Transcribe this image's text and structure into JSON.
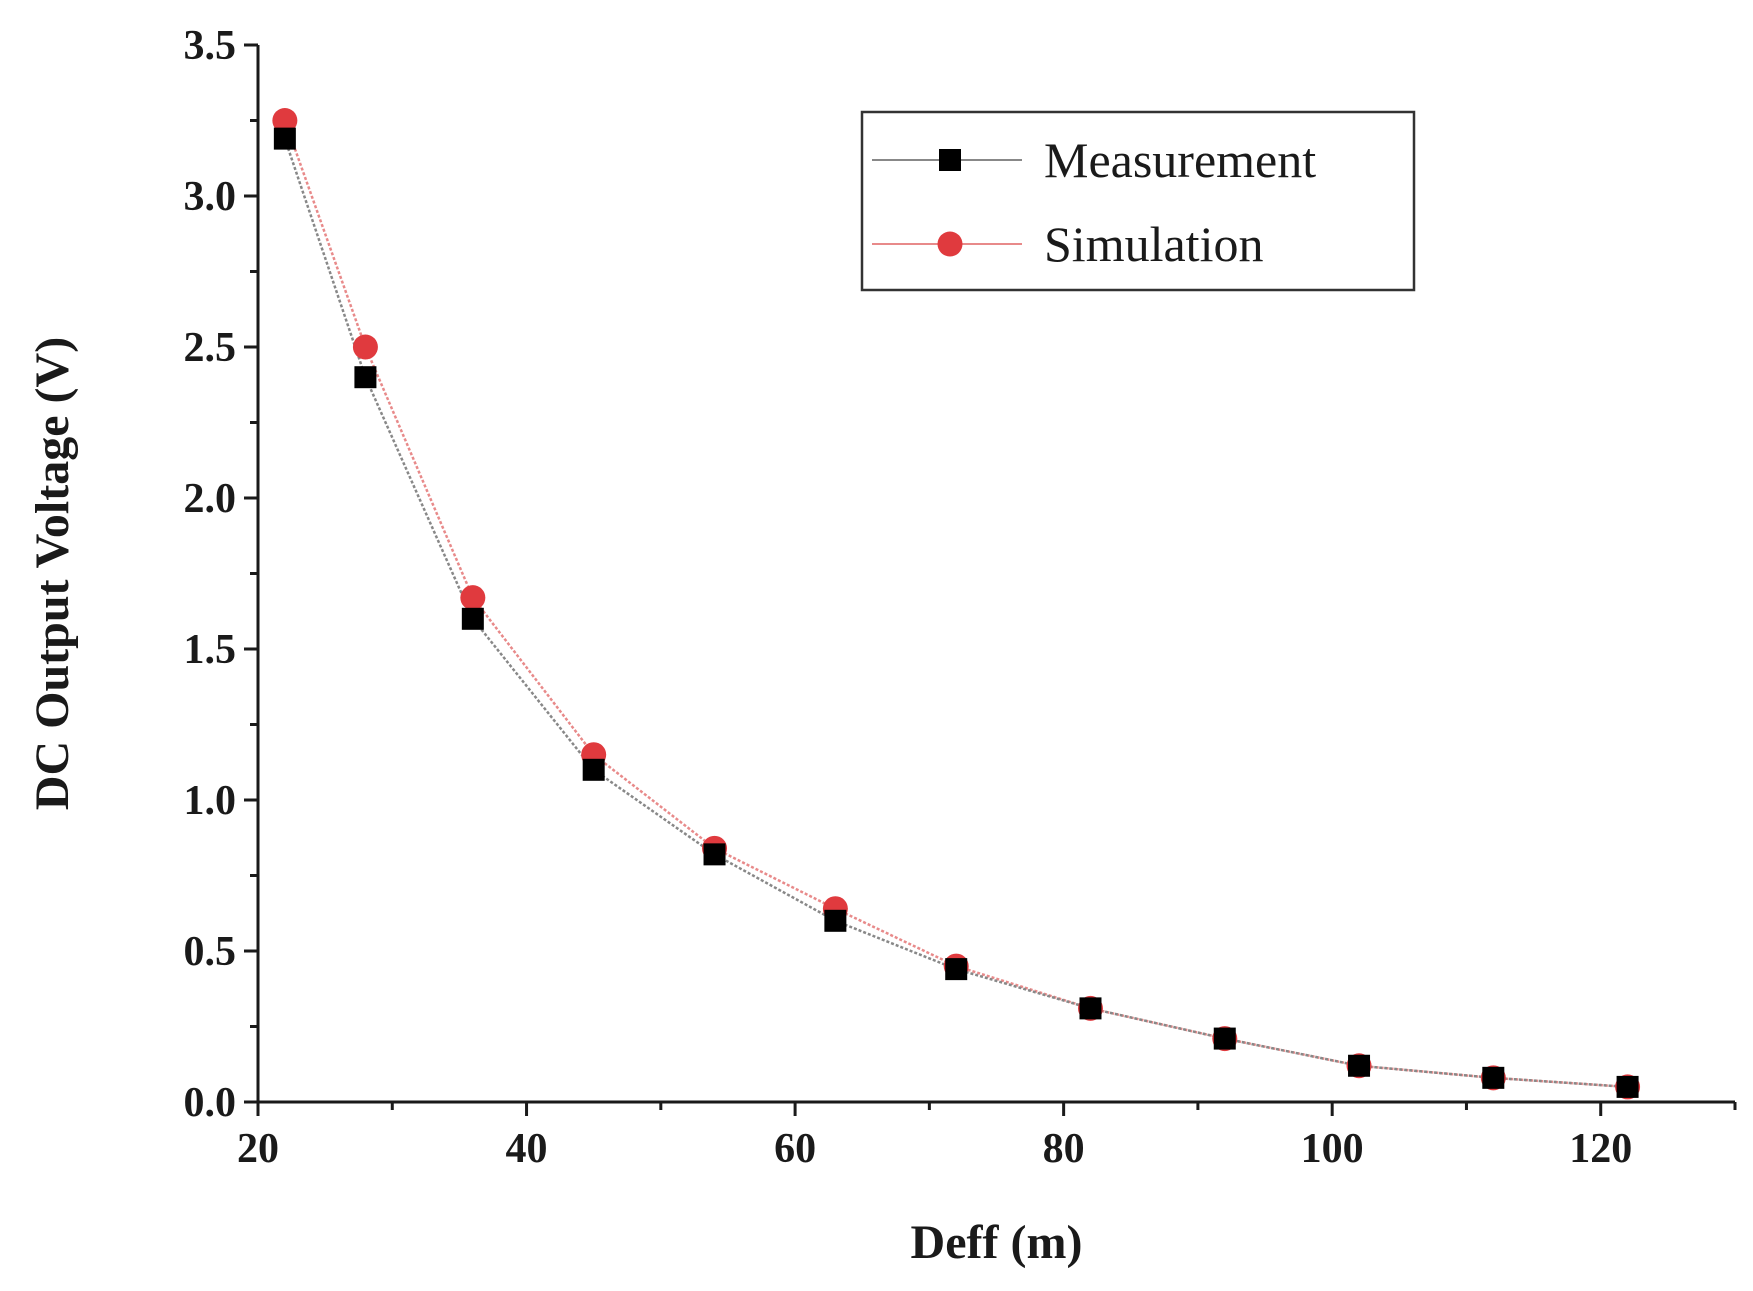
{
  "chart_data": {
    "type": "line",
    "title": "",
    "xlabel": "Deff (m)",
    "ylabel": "DC Output Voltage (V)",
    "xlim": [
      20,
      130
    ],
    "ylim": [
      0,
      3.5
    ],
    "x_ticks": [
      "20",
      "40",
      "60",
      "80",
      "100",
      "120"
    ],
    "x_tick_values": [
      20,
      40,
      60,
      80,
      100,
      120
    ],
    "y_ticks": [
      "0.0",
      "0.5",
      "1.0",
      "1.5",
      "2.0",
      "2.5",
      "3.0",
      "3.5"
    ],
    "y_tick_values": [
      0,
      0.5,
      1.0,
      1.5,
      2.0,
      2.5,
      3.0,
      3.5
    ],
    "x": [
      22,
      28,
      36,
      45,
      54,
      63,
      72,
      82,
      92,
      102,
      112,
      122
    ],
    "series": [
      {
        "name": "Measurement",
        "marker": "square",
        "color": "#000000",
        "line_color": "#888888",
        "values": [
          3.19,
          2.4,
          1.6,
          1.1,
          0.82,
          0.6,
          0.44,
          0.31,
          0.21,
          0.12,
          0.08,
          0.05
        ]
      },
      {
        "name": "Simulation",
        "marker": "circle",
        "color": "#e03a3e",
        "line_color": "#e88a8a",
        "values": [
          3.25,
          2.5,
          1.67,
          1.15,
          0.84,
          0.64,
          0.45,
          0.31,
          0.21,
          0.12,
          0.08,
          0.05
        ]
      }
    ],
    "legend_position": "top-right",
    "grid": false
  }
}
